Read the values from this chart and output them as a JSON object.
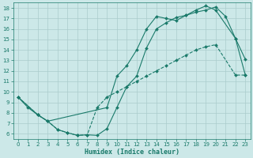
{
  "xlabel": "Humidex (Indice chaleur)",
  "bg_color": "#cce8e8",
  "line_color": "#1a7a6a",
  "grid_color": "#aacccc",
  "xlim": [
    -0.5,
    23.5
  ],
  "ylim": [
    5.5,
    18.5
  ],
  "yticks": [
    6,
    7,
    8,
    9,
    10,
    11,
    12,
    13,
    14,
    15,
    16,
    17,
    18
  ],
  "xticks": [
    0,
    1,
    2,
    3,
    4,
    5,
    6,
    7,
    8,
    9,
    10,
    11,
    12,
    13,
    14,
    15,
    16,
    17,
    18,
    19,
    20,
    21,
    22,
    23
  ],
  "curve1_x": [
    0,
    1,
    2,
    3,
    4,
    5,
    6,
    7,
    8,
    9,
    10,
    11,
    12,
    13,
    14,
    15,
    16,
    17,
    18,
    19,
    20,
    21,
    22,
    23
  ],
  "curve1_y": [
    9.5,
    8.5,
    7.8,
    7.2,
    6.4,
    6.1,
    5.85,
    5.9,
    5.85,
    6.5,
    8.5,
    10.5,
    11.5,
    14.2,
    16.0,
    16.6,
    17.1,
    17.3,
    17.6,
    17.8,
    18.1,
    17.2,
    15.1,
    13.1
  ],
  "curve2_x": [
    0,
    2,
    3,
    9,
    10,
    11,
    12,
    13,
    14,
    15,
    16,
    17,
    18,
    19,
    20,
    22,
    23
  ],
  "curve2_y": [
    9.5,
    7.8,
    7.2,
    8.5,
    11.5,
    12.5,
    14.0,
    16.0,
    17.2,
    17.0,
    16.8,
    17.3,
    17.8,
    18.2,
    17.8,
    15.1,
    11.6
  ],
  "curve3_x": [
    0,
    2,
    3,
    4,
    5,
    6,
    7,
    8,
    9,
    10,
    11,
    12,
    13,
    14,
    15,
    16,
    17,
    18,
    19,
    20,
    22,
    23
  ],
  "curve3_y": [
    9.5,
    7.8,
    7.2,
    6.4,
    6.1,
    5.85,
    5.9,
    8.5,
    9.5,
    10.0,
    10.5,
    11.0,
    11.5,
    12.0,
    12.5,
    13.0,
    13.5,
    14.0,
    14.3,
    14.5,
    11.6,
    11.6
  ]
}
